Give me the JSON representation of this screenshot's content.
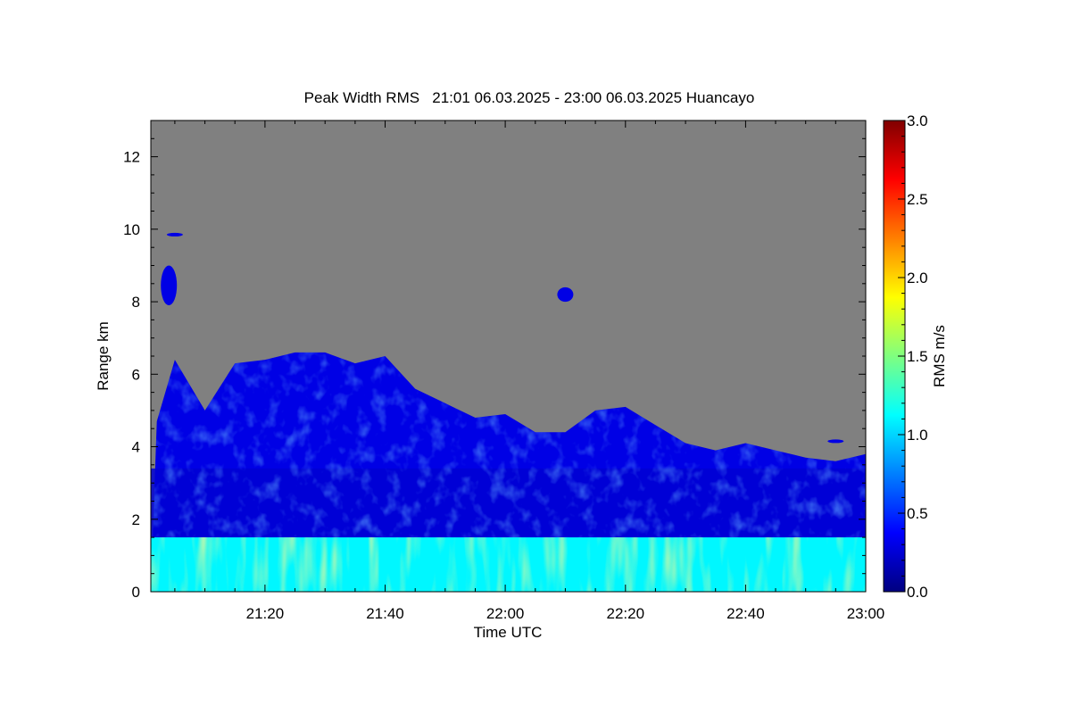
{
  "chart_data": {
    "type": "heatmap",
    "title": "Peak Width RMS   21:01 06.03.2025 - 23:00 06.03.2025 Huancayo",
    "xlabel": "Time UTC",
    "ylabel": "Range km",
    "colorbar_label": "RMS m/s",
    "x_range": [
      "21:01",
      "23:00"
    ],
    "xlim_minutes_utc": [
      1261,
      1380
    ],
    "ylim": [
      0,
      13
    ],
    "x_ticks": [
      "21:20",
      "21:40",
      "22:00",
      "22:20",
      "22:40",
      "23:00"
    ],
    "x_tick_minutes_utc": [
      1280,
      1300,
      1320,
      1340,
      1360,
      1380
    ],
    "y_ticks": [
      0,
      2,
      4,
      6,
      8,
      10,
      12
    ],
    "y_tick_labels": [
      "0",
      "2",
      "4",
      "6",
      "8",
      "10",
      "12"
    ],
    "colorbar": {
      "min": 0.0,
      "max": 3.0,
      "colormap": "jet",
      "ticks": [
        0.0,
        0.5,
        1.0,
        1.5,
        2.0,
        2.5,
        3.0
      ],
      "tick_labels": [
        "0.0",
        "0.5",
        "1.0",
        "1.5",
        "2.0",
        "2.5",
        "3.0"
      ]
    },
    "no_data_color": "#808080",
    "fields": {
      "cloud_top_km": [
        {
          "x": "21:02",
          "y": 4.7
        },
        {
          "x": "21:05",
          "y": 6.4
        },
        {
          "x": "21:10",
          "y": 5.0
        },
        {
          "x": "21:15",
          "y": 6.3
        },
        {
          "x": "21:20",
          "y": 6.4
        },
        {
          "x": "21:25",
          "y": 6.6
        },
        {
          "x": "21:30",
          "y": 6.6
        },
        {
          "x": "21:35",
          "y": 6.3
        },
        {
          "x": "21:40",
          "y": 6.5
        },
        {
          "x": "21:45",
          "y": 5.6
        },
        {
          "x": "21:50",
          "y": 5.2
        },
        {
          "x": "21:55",
          "y": 4.8
        },
        {
          "x": "22:00",
          "y": 4.9
        },
        {
          "x": "22:05",
          "y": 4.4
        },
        {
          "x": "22:10",
          "y": 4.4
        },
        {
          "x": "22:15",
          "y": 5.0
        },
        {
          "x": "22:20",
          "y": 5.1
        },
        {
          "x": "22:25",
          "y": 4.6
        },
        {
          "x": "22:30",
          "y": 4.1
        },
        {
          "x": "22:35",
          "y": 3.9
        },
        {
          "x": "22:40",
          "y": 4.1
        },
        {
          "x": "22:45",
          "y": 3.9
        },
        {
          "x": "22:50",
          "y": 3.7
        },
        {
          "x": "22:55",
          "y": 3.6
        },
        {
          "x": "23:00",
          "y": 3.8
        }
      ],
      "boundary_layer_top_km": 1.5,
      "isolated_patches": [
        {
          "x": "21:04",
          "y_bottom": 7.9,
          "y_top": 9.0,
          "rms": 0.3
        },
        {
          "x": "21:05",
          "y_bottom": 9.8,
          "y_top": 9.9,
          "rms": 0.3
        },
        {
          "x": "22:10",
          "y_bottom": 8.0,
          "y_top": 8.4,
          "rms": 0.3
        },
        {
          "x": "22:55",
          "y_bottom": 4.1,
          "y_top": 4.2,
          "rms": 0.3
        }
      ],
      "typical_rms": {
        "upper_cloud": 0.3,
        "mid_layer": 0.25,
        "boundary_layer": 1.1,
        "boundary_layer_peaks": 1.8
      }
    }
  }
}
